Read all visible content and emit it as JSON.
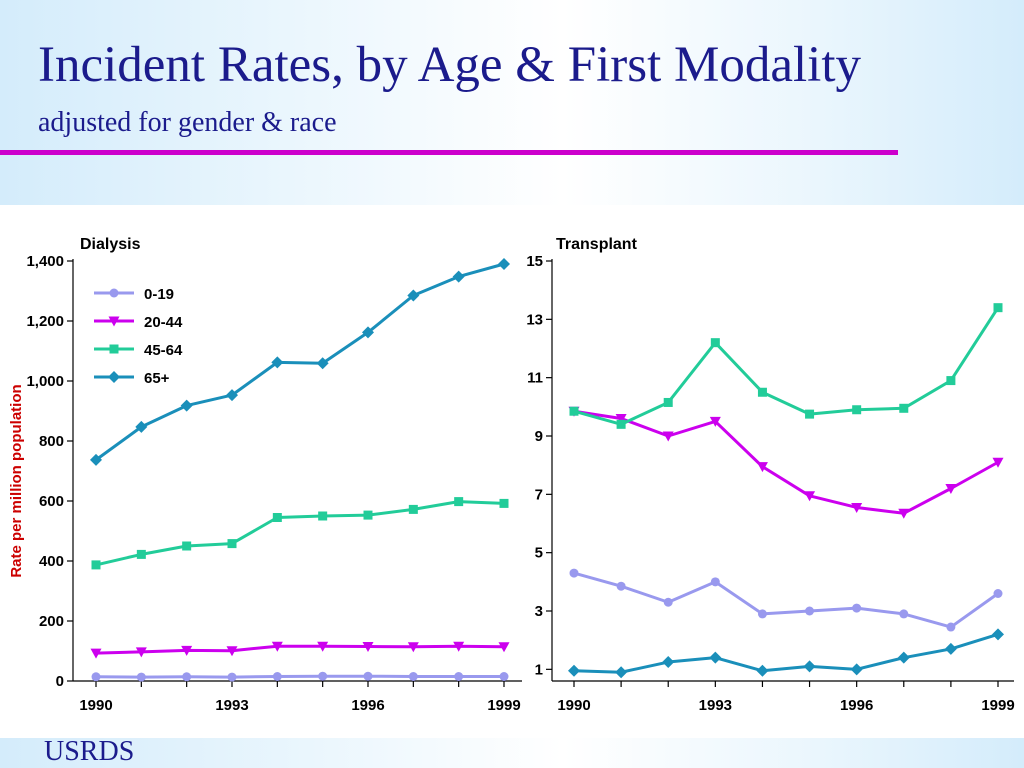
{
  "slide": {
    "title": "Incident Rates, by Age & First Modality",
    "subtitle": "adjusted for gender & race",
    "footer": "USRDS",
    "rule_color": "#cc00cc"
  },
  "chart_data": [
    {
      "type": "line",
      "title": "Dialysis",
      "ylabel": "Rate per million population",
      "x": [
        1990,
        1991,
        1992,
        1993,
        1994,
        1995,
        1996,
        1997,
        1998,
        1999
      ],
      "xticks": [
        "1990",
        "1993",
        "1996",
        "1999"
      ],
      "yticks": [
        "0",
        "200",
        "400",
        "600",
        "800",
        "1,000",
        "1,200",
        "1,400"
      ],
      "ylim": [
        0,
        1400
      ],
      "grid": false,
      "legend": "top-left",
      "series": [
        {
          "name": "0-19",
          "color": "#9999ee",
          "marker": "circle",
          "values": [
            14,
            13,
            14,
            13,
            15,
            16,
            16,
            15,
            15,
            15
          ]
        },
        {
          "name": "20-44",
          "color": "#cc00ee",
          "marker": "triangle-down",
          "values": [
            93,
            97,
            102,
            101,
            116,
            116,
            115,
            114,
            116,
            114
          ]
        },
        {
          "name": "45-64",
          "color": "#22cc99",
          "marker": "square",
          "values": [
            387,
            422,
            450,
            458,
            545,
            550,
            553,
            572,
            598,
            592
          ]
        },
        {
          "name": "65+",
          "color": "#1a8fba",
          "marker": "diamond",
          "values": [
            737,
            847,
            918,
            953,
            1062,
            1059,
            1162,
            1285,
            1348,
            1390
          ]
        }
      ]
    },
    {
      "type": "line",
      "title": "Transplant",
      "x": [
        1990,
        1991,
        1992,
        1993,
        1994,
        1995,
        1996,
        1997,
        1998,
        1999
      ],
      "xticks": [
        "1990",
        "1993",
        "1996",
        "1999"
      ],
      "yticks": [
        "1",
        "3",
        "5",
        "7",
        "9",
        "11",
        "13",
        "15"
      ],
      "ylim": [
        0.6,
        15
      ],
      "grid": false,
      "series": [
        {
          "name": "0-19",
          "color": "#9999ee",
          "marker": "circle",
          "values": [
            4.3,
            3.85,
            3.3,
            4.0,
            2.9,
            3.0,
            3.1,
            2.9,
            2.45,
            3.6
          ]
        },
        {
          "name": "20-44",
          "color": "#cc00ee",
          "marker": "triangle-down",
          "values": [
            9.85,
            9.6,
            9.0,
            9.5,
            7.95,
            6.95,
            6.55,
            6.35,
            7.2,
            8.1
          ]
        },
        {
          "name": "45-64",
          "color": "#22cc99",
          "marker": "square",
          "values": [
            9.85,
            9.4,
            10.15,
            12.2,
            10.5,
            9.75,
            9.9,
            9.95,
            10.9,
            13.4
          ]
        },
        {
          "name": "65+",
          "color": "#1a8fba",
          "marker": "diamond",
          "values": [
            0.95,
            0.9,
            1.25,
            1.4,
            0.95,
            1.1,
            1.0,
            1.4,
            1.7,
            2.2
          ]
        }
      ]
    }
  ]
}
